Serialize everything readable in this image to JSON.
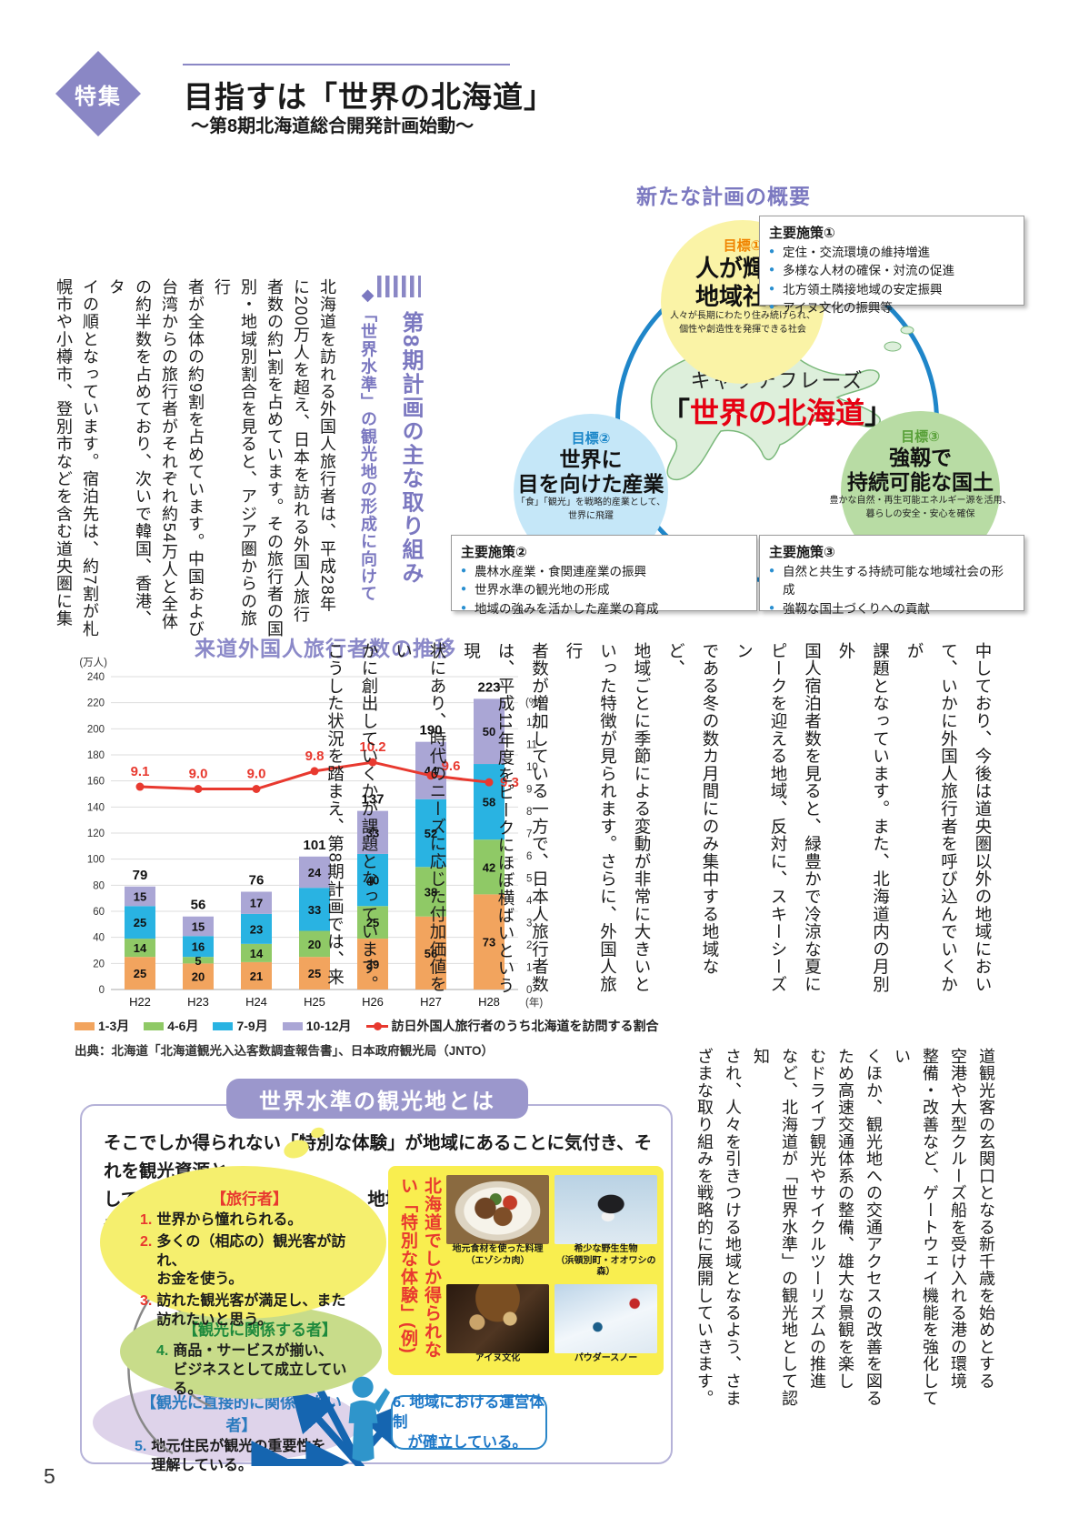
{
  "header": {
    "badge": "特集",
    "title": "目指すは「世界の北海道」",
    "subtitle": "～第8期北海道総合開発計画始動～"
  },
  "plan": {
    "title": "新たな計画の概要",
    "catch_label": "キャッチフレーズ",
    "catch_open": "「",
    "catch_text": "世界の北海道",
    "catch_close": "」",
    "goal1": {
      "tag": "目標①",
      "line1": "人が輝く",
      "line2": "地域社会",
      "desc": "人々が長期にわたり住み続けられ、\n個性や創造性を発揮できる社会"
    },
    "goal2": {
      "tag": "目標②",
      "line1": "世界に",
      "line2": "目を向けた産業",
      "desc": "「食」「観光」を戦略的産業として、\n世界に飛躍"
    },
    "goal3": {
      "tag": "目標③",
      "line1": "強靱で",
      "line2": "持続可能な国土",
      "desc": "豊かな自然・再生可能エネルギー源を活用、\n暮らしの安全・安心を確保"
    },
    "policy1": {
      "title": "主要施策①",
      "items": [
        "定住・交流環境の維持増進",
        "多様な人材の確保・対流の促進",
        "北方領土隣接地域の安定振興",
        "アイヌ文化の振興等"
      ]
    },
    "policy2": {
      "title": "主要施策②",
      "items": [
        "農林水産業・食関連産業の振興",
        "世界水準の観光地の形成",
        "地域の強みを活かした産業の育成"
      ]
    },
    "policy3": {
      "title": "主要施策③",
      "items": [
        "自然と共生する持続可能な地域社会の形成",
        "強靱な国土づくりへの貢献"
      ]
    }
  },
  "article": {
    "heading": "第8期計画の主な取り組み",
    "subheading": "◆「世界水準」の観光地の形成に向けて",
    "part1": [
      "北海道を訪れる外国人旅行者は、平成28年",
      "に200万人を超え、日本を訪れる外国人旅行",
      "者数の約1割を占めています。その旅行者の国",
      "別・地域別割合を見ると、アジア圏からの旅行",
      "者が全体の約9割を占めています。中国および",
      "台湾からの旅行者がそれぞれ約54万人と全体",
      "の約半数を占めており、次いで韓国、香港、タ",
      "イの順となっています。宿泊先は、約7割が札",
      "幌市や小樽市、登別市などを含む道央圏に集"
    ],
    "part2": [
      "中しており、今後は道央圏以外の地域におい",
      "て、いかに外国人旅行者を呼び込んでいくかが",
      "課題となっています。また、北海道内の月別外",
      "国人宿泊者数を見ると、緑豊かで冷涼な夏に",
      "ピークを迎える地域、反対に、スキーシーズン",
      "である冬の数カ月間にのみ集中する地域など、",
      "地域ごとに季節による変動が非常に大きいと",
      "いった特徴が見られます。さらに、外国人旅行",
      "者数が増加している一方で、日本人旅行者数",
      "は、平成11年度をピークにほぼ横ばいという現",
      "状にあり、時代のニーズに応じた付加価値をい",
      "かに創出していくかが課題となっています。",
      "こうした状況を踏まえ、第8期計画では、来"
    ],
    "part3": [
      "道観光客の玄関口となる新千歳を始めとする",
      "空港や大型クルーズ船を受け入れる港の環境",
      "整備・改善など、ゲートウェイ機能を強化してい",
      "くほか、観光地への交通アクセスの改善を図る",
      "ため高速交通体系の整備、雄大な景観を楽し",
      "むドライブ観光やサイクルツーリズムの推進",
      "など、北海道が「世界水準」の観光地として認知",
      "され、人々を引きつける地域となるよう、さま",
      "ざまな取り組みを戦略的に展開していきます。"
    ]
  },
  "chart_data": {
    "type": "stacked-bar+line",
    "title": "来道外国人旅行者数の推移",
    "left_axis_label": "(万人)",
    "right_axis_label": "(%)",
    "x_axis_suffix": "(年)",
    "categories": [
      "H22",
      "H23",
      "H24",
      "H25",
      "H26",
      "H27",
      "H28"
    ],
    "series": [
      {
        "name": "1-3月",
        "color": "#f2a45e",
        "values": [
          25,
          20,
          21,
          25,
          39,
          56,
          73
        ]
      },
      {
        "name": "4-6月",
        "color": "#8fc966",
        "values": [
          14,
          5,
          14,
          20,
          25,
          38,
          42
        ]
      },
      {
        "name": "7-9月",
        "color": "#29b3e2",
        "values": [
          25,
          16,
          23,
          33,
          40,
          52,
          58
        ]
      },
      {
        "name": "10-12月",
        "color": "#aaa6d5",
        "values": [
          15,
          15,
          17,
          24,
          33,
          44,
          50
        ]
      }
    ],
    "totals": [
      79,
      56,
      76,
      101,
      137,
      190,
      223
    ],
    "line": {
      "name": "訪日外国人旅行者のうち北海道を訪問する割合",
      "color": "#e8392f",
      "values": [
        9.1,
        9.0,
        9.0,
        9.8,
        10.2,
        9.6,
        9.3
      ]
    },
    "left_ylim": [
      0,
      240
    ],
    "left_step": 20,
    "right_ylim": [
      0,
      12
    ],
    "right_step": 1,
    "legend_position": "bottom",
    "grid": true,
    "source": "出典：北海道「北海道観光入込客数調査報告書」、日本政府観光局（JNTO）"
  },
  "tourism": {
    "title": "世界水準の観光地とは",
    "intro": "そこでしか得られない「特別な体験」が地域にあることに気付き、それを観光資源と\nして生かしてビジネスへと高め、地域が一体となって支えている地域。",
    "traveler": {
      "label": "【旅行者】",
      "items": [
        {
          "num": "1.",
          "text": "世界から憧れられる。"
        },
        {
          "num": "2.",
          "text": "多くの（相応の）観光客が訪れ、\nお金を使う。"
        },
        {
          "num": "3.",
          "text": "訪れた観光客が満足し、また\n訪れたいと思う。"
        }
      ]
    },
    "related": {
      "label": "【観光に関係する者】",
      "items": [
        {
          "num": "4.",
          "text": "商品・サービスが揃い、\nビジネスとして成立している。"
        }
      ]
    },
    "unrelated": {
      "label": "【観光に直接的に関係しない者】",
      "items": [
        {
          "num": "5.",
          "text": "地元住民が観光の重要性を\n理解している。"
        }
      ]
    },
    "example_label": "北海道でしか得られない「特別な体験」(例)",
    "photos": [
      {
        "caption": "地元食材を使った料理\n（エゾシカ肉）"
      },
      {
        "caption": "希少な野生生物\n（浜頓別町・オオワシの森）"
      },
      {
        "caption": "アイヌ文化"
      },
      {
        "caption": "パウダースノー"
      }
    ],
    "management": "6. 地域における運営体制\n　が確立している。"
  },
  "footer": {
    "page_number": "5"
  }
}
